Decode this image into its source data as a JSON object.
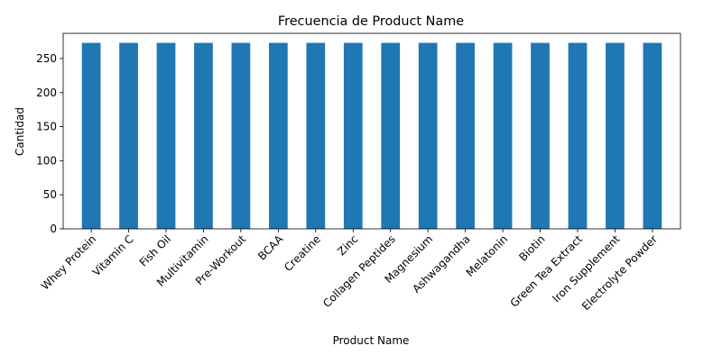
{
  "chart_data": {
    "type": "bar",
    "title": "Frecuencia de Product Name",
    "xlabel": "Product Name",
    "ylabel": "Cantidad",
    "categories": [
      "Whey Protein",
      "Vitamin C",
      "Fish Oil",
      "Multivitamin",
      "Pre-Workout",
      "BCAA",
      "Creatine",
      "Zinc",
      "Collagen Peptides",
      "Magnesium",
      "Ashwagandha",
      "Melatonin",
      "Biotin",
      "Green Tea Extract",
      "Iron Supplement",
      "Electrolyte Powder"
    ],
    "values": [
      273,
      273,
      273,
      273,
      273,
      273,
      273,
      273,
      273,
      273,
      273,
      273,
      273,
      273,
      273,
      273
    ],
    "yticks": [
      "0",
      "50",
      "100",
      "150",
      "200",
      "250"
    ],
    "ylim": [
      0,
      287
    ],
    "bar_color": "#1f77b4",
    "grid": false,
    "legend": "none"
  }
}
